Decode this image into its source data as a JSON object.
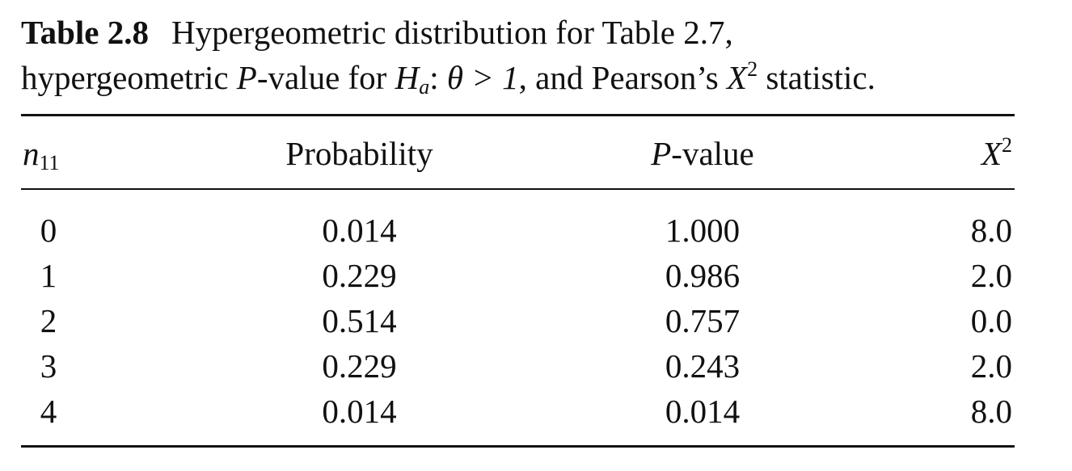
{
  "caption": {
    "label": "Table 2.8",
    "line1": "Hypergeometric distribution for Table 2.7,",
    "line2_pre": "hypergeometric ",
    "line2_P": "P",
    "line2_mid": "-value for ",
    "line2_H": "H",
    "line2_Hsub": "a",
    "line2_colon": ": ",
    "line2_theta": "θ > 1",
    "line2_post": ", and Pearson’s ",
    "line2_X": "X",
    "line2_Xsup": "2",
    "line2_end": " statistic."
  },
  "table": {
    "headers": {
      "n": "n",
      "n_sub": "11",
      "probability": "Probability",
      "pvalue_P": "P",
      "pvalue_rest": "-value",
      "x": "X",
      "x_sup": "2"
    },
    "rows": [
      {
        "n11": "0",
        "probability": "0.014",
        "pvalue": "1.000",
        "x2": "8.0"
      },
      {
        "n11": "1",
        "probability": "0.229",
        "pvalue": "0.986",
        "x2": "2.0"
      },
      {
        "n11": "2",
        "probability": "0.514",
        "pvalue": "0.757",
        "x2": "0.0"
      },
      {
        "n11": "3",
        "probability": "0.229",
        "pvalue": "0.243",
        "x2": "2.0"
      },
      {
        "n11": "4",
        "probability": "0.014",
        "pvalue": "0.014",
        "x2": "8.0"
      }
    ]
  }
}
